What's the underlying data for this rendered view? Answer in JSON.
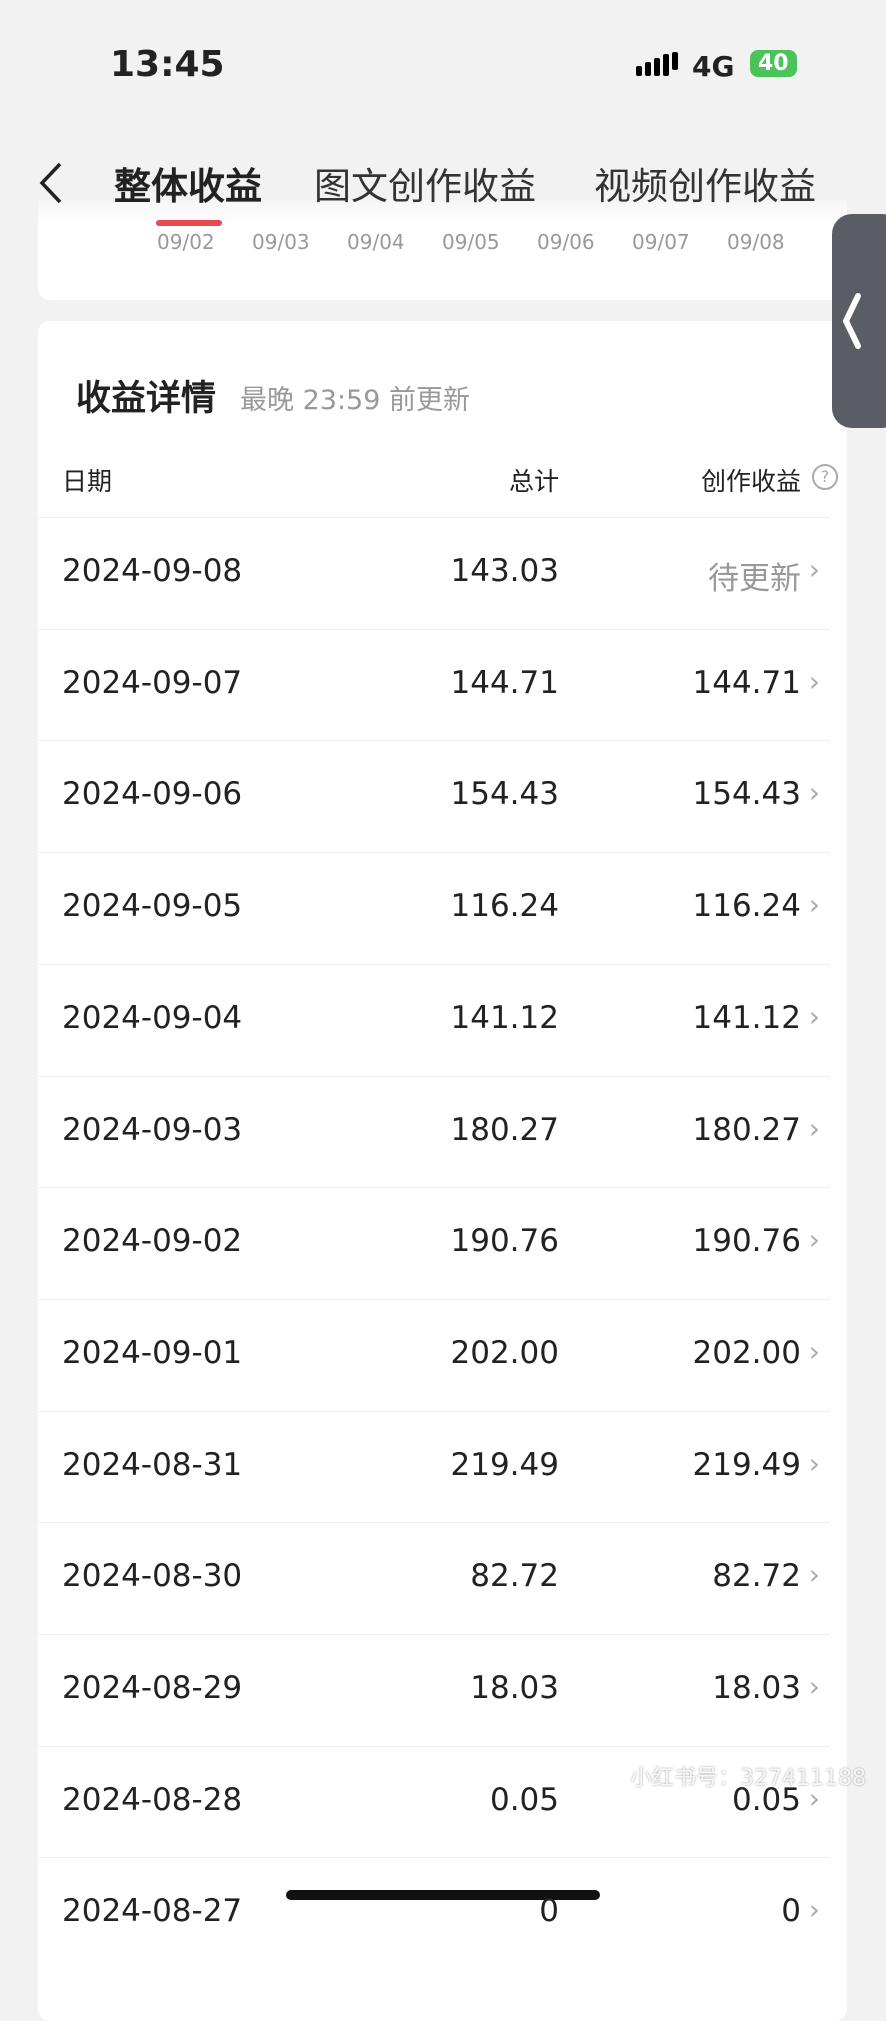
{
  "status": {
    "time": "13:45",
    "network": "4G",
    "battery": "40"
  },
  "tabs": [
    "整体收益",
    "图文创作收益",
    "视频创作收益"
  ],
  "axis_dates": [
    "09/02",
    "09/03",
    "09/04",
    "09/05",
    "09/06",
    "09/07",
    "09/08"
  ],
  "detail": {
    "title": "收益详情",
    "subtitle": "最晚 23:59 前更新"
  },
  "table": {
    "headers": [
      "日期",
      "总计",
      "创作收益"
    ],
    "rows": [
      [
        "2024-09-08",
        "143.03",
        "待更新"
      ],
      [
        "2024-09-07",
        "144.71",
        "144.71"
      ],
      [
        "2024-09-06",
        "154.43",
        "154.43"
      ],
      [
        "2024-09-05",
        "116.24",
        "116.24"
      ],
      [
        "2024-09-04",
        "141.12",
        "141.12"
      ],
      [
        "2024-09-03",
        "180.27",
        "180.27"
      ],
      [
        "2024-09-02",
        "190.76",
        "190.76"
      ],
      [
        "2024-09-01",
        "202.00",
        "202.00"
      ],
      [
        "2024-08-31",
        "219.49",
        "219.49"
      ],
      [
        "2024-08-30",
        "82.72",
        "82.72"
      ],
      [
        "2024-08-29",
        "18.03",
        "18.03"
      ],
      [
        "2024-08-28",
        "0.05",
        "0.05"
      ],
      [
        "2024-08-27",
        "0",
        "0"
      ]
    ]
  },
  "watermark": "小红书号：327411188"
}
